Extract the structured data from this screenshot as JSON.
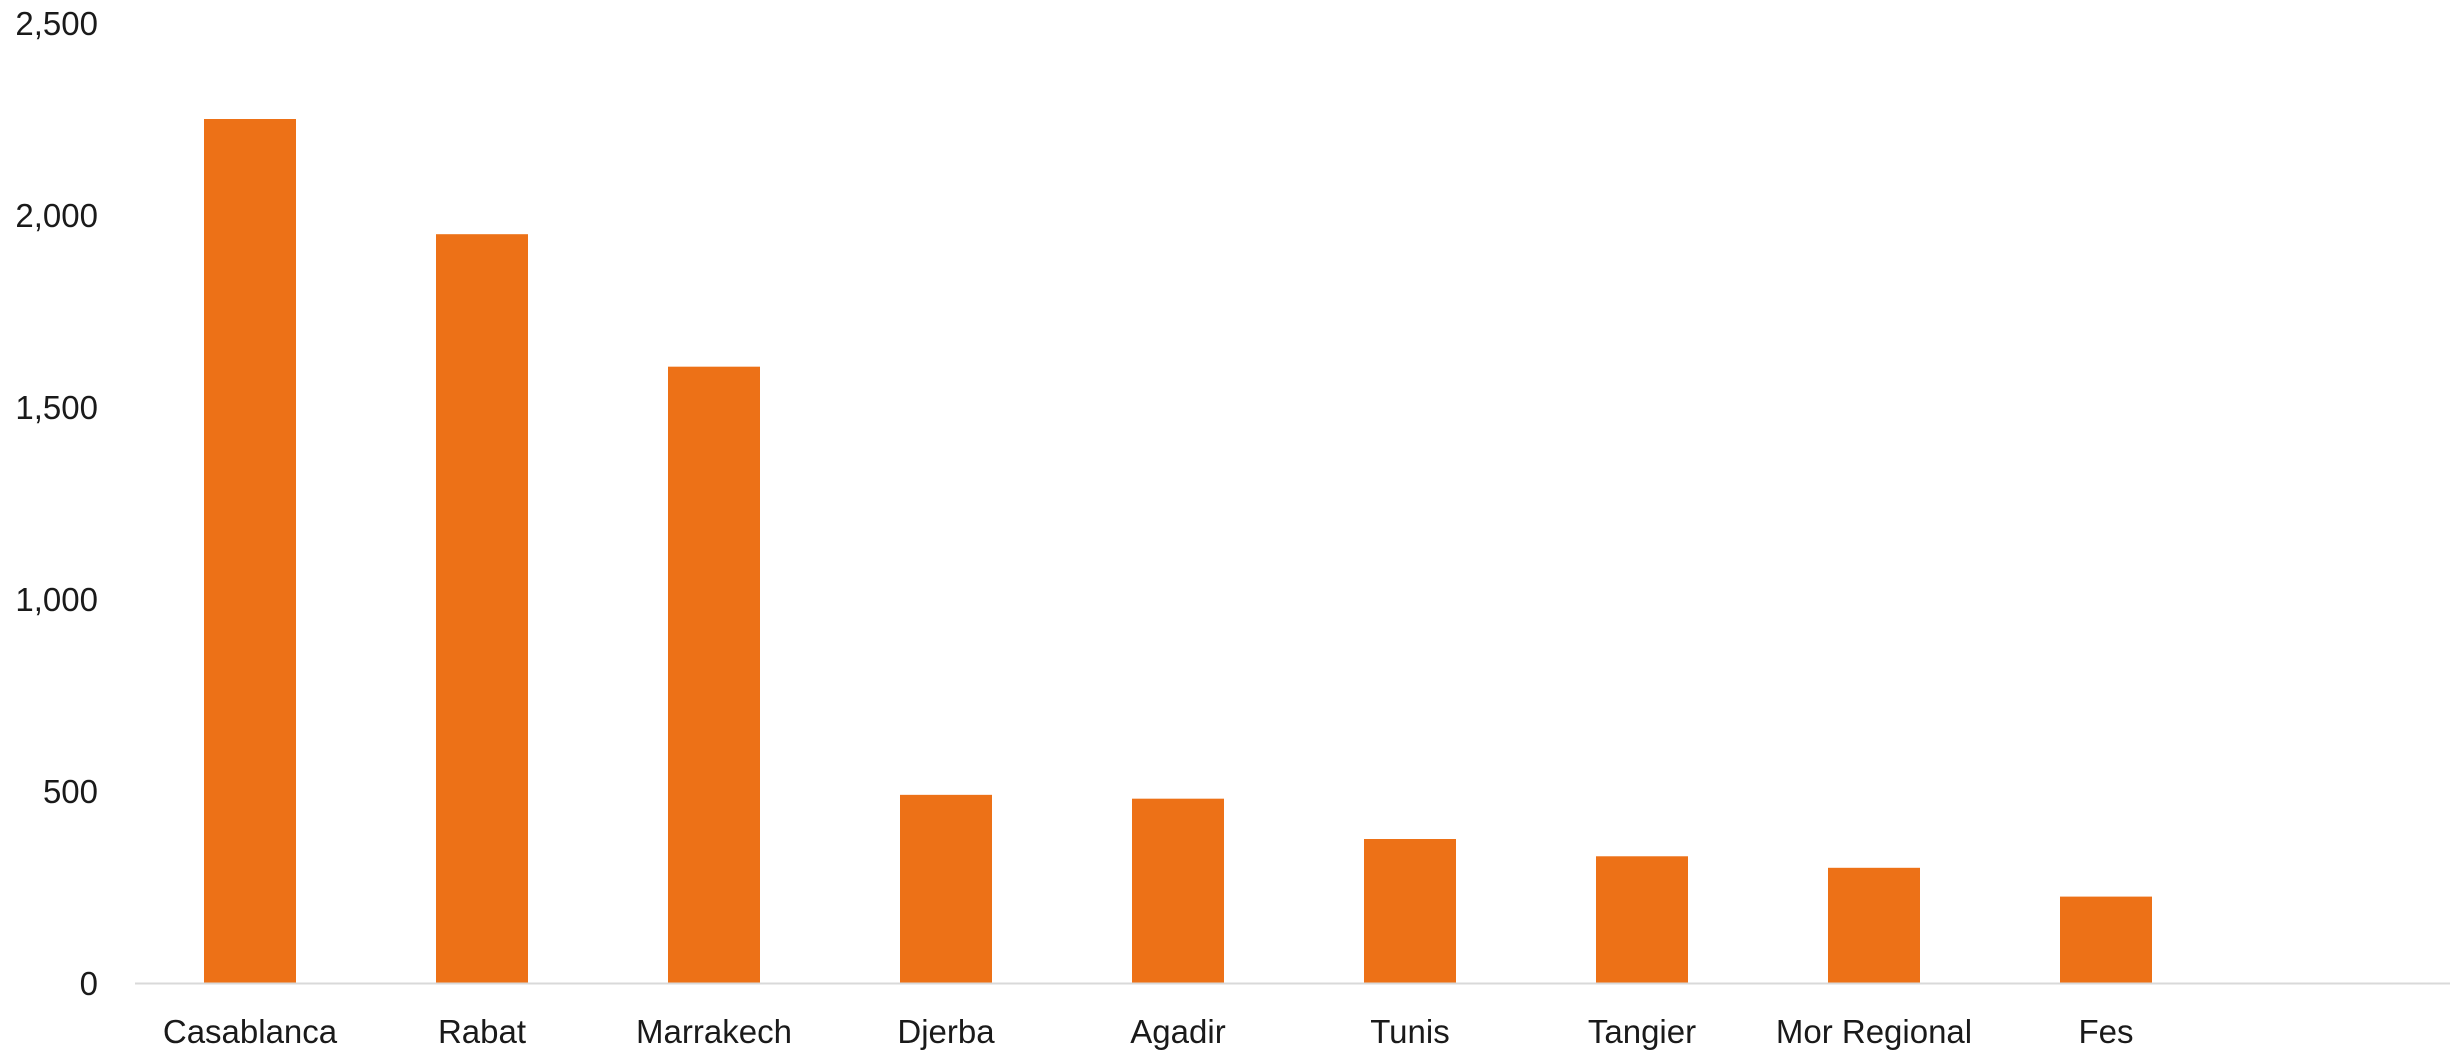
{
  "chart_data": {
    "type": "bar",
    "title": "",
    "xlabel": "",
    "ylabel": "",
    "categories": [
      "Casablanca",
      "Rabat",
      "Marrakech",
      "Djerba",
      "Agadir",
      "Tunis",
      "Tangier",
      "Mor Regional",
      "Fes"
    ],
    "values": [
      2250,
      1950,
      1605,
      490,
      480,
      375,
      330,
      300,
      225
    ],
    "ylim": [
      0,
      2500
    ],
    "yticks": [
      0,
      500,
      1000,
      1500,
      2000,
      2500
    ],
    "ytick_labels": [
      "0",
      "500",
      "1,000",
      "1,500",
      "2,000",
      "2,500"
    ],
    "grid": false,
    "legend": "none",
    "bar_color": "#ED7117",
    "axis_color": "#D9D9D9"
  }
}
